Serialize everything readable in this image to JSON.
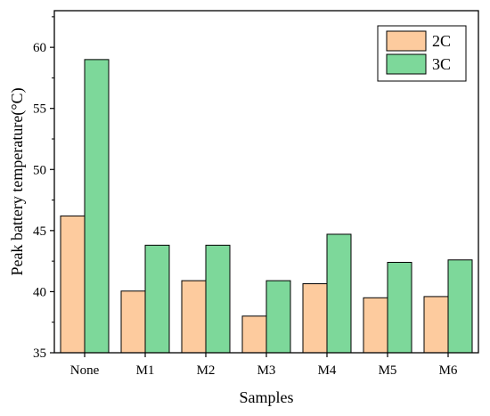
{
  "chart_data": {
    "type": "bar",
    "title": "",
    "xlabel": "Samples",
    "ylabel": "Peak battery temperature(°C)",
    "categories": [
      "None",
      "M1",
      "M2",
      "M3",
      "M4",
      "M5",
      "M6"
    ],
    "series": [
      {
        "name": "2C",
        "values": [
          46.2,
          40.05,
          40.9,
          38.0,
          40.65,
          39.5,
          39.6
        ]
      },
      {
        "name": "3C",
        "values": [
          59.0,
          43.8,
          43.8,
          40.9,
          44.7,
          42.4,
          42.6
        ]
      }
    ],
    "ylim": [
      35,
      63
    ],
    "yticks": [
      35,
      40,
      45,
      50,
      55,
      60
    ],
    "grid": false,
    "legend_position": "top-right",
    "colors": {
      "2C": "#FDCB9E",
      "3C": "#7DD89A",
      "edge": "#000000"
    }
  }
}
